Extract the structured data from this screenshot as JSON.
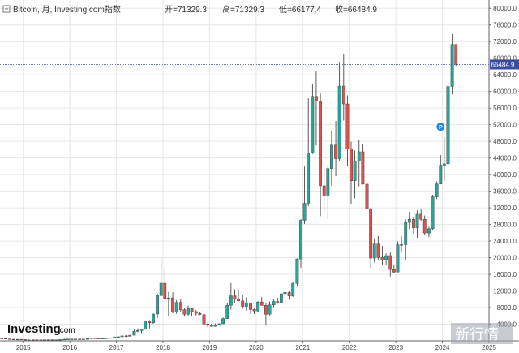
{
  "header": {
    "symbol": "Bitcoin, 月, Investing.com指数",
    "open_label": "开=71329.3",
    "high_label": "高=71329.3",
    "low_label": "低=66177.4",
    "close_label": "收=66484.9"
  },
  "current_price_label": "66484.9",
  "brand": {
    "name": "Investing",
    "suffix": ".com"
  },
  "watermark": "新行情",
  "colors": {
    "up": "#26a69a",
    "down": "#d9534f",
    "up_alt": "#2e9e6a",
    "price_line": "#3b4ba0",
    "grid": "#e6e6e6",
    "axis": "#666666",
    "marker": "#1e88e5"
  },
  "marker_icon": "p-event-icon",
  "marker_label": "P",
  "chart_data": {
    "type": "candlestick",
    "interval": "monthly",
    "ylim": [
      0,
      82000
    ],
    "yticks": [
      4000,
      8000,
      12000,
      16000,
      20000,
      24000,
      28000,
      32000,
      36000,
      40000,
      44000,
      48000,
      52000,
      56000,
      60000,
      64000,
      68000,
      72000,
      76000,
      80000
    ],
    "ytick_labels": [
      "4000.0",
      "8000.0",
      "12000.0",
      "16000.0",
      "20000.0",
      "24000.0",
      "28000.0",
      "32000.0",
      "36000.0",
      "40000.0",
      "44000.0",
      "48000.0",
      "52000.0",
      "56000.0",
      "60000.0",
      "64000.0",
      "68000.0",
      "72000.0",
      "76000.0",
      "80000.0"
    ],
    "xticks": [
      "2015",
      "2016",
      "2017",
      "2018",
      "2019",
      "2020",
      "2021",
      "2022",
      "2023",
      "2024",
      "2025"
    ],
    "x_start": 2014.5,
    "x_end": 2025.0,
    "current_price": 66484.9,
    "marker": {
      "t": 2023.96,
      "y": 51500
    },
    "candles": [
      {
        "t": 2014.54,
        "o": 620,
        "h": 650,
        "l": 580,
        "c": 590
      },
      {
        "t": 2014.62,
        "o": 590,
        "h": 600,
        "l": 460,
        "c": 480
      },
      {
        "t": 2014.71,
        "o": 480,
        "h": 490,
        "l": 370,
        "c": 390
      },
      {
        "t": 2014.79,
        "o": 390,
        "h": 420,
        "l": 320,
        "c": 340
      },
      {
        "t": 2014.88,
        "o": 340,
        "h": 440,
        "l": 330,
        "c": 375
      },
      {
        "t": 2014.96,
        "o": 375,
        "h": 380,
        "l": 310,
        "c": 320
      },
      {
        "t": 2015.04,
        "o": 320,
        "h": 320,
        "l": 170,
        "c": 215
      },
      {
        "t": 2015.12,
        "o": 215,
        "h": 265,
        "l": 200,
        "c": 254
      },
      {
        "t": 2015.21,
        "o": 254,
        "h": 300,
        "l": 240,
        "c": 244
      },
      {
        "t": 2015.29,
        "o": 244,
        "h": 260,
        "l": 215,
        "c": 236
      },
      {
        "t": 2015.38,
        "o": 236,
        "h": 245,
        "l": 225,
        "c": 230
      },
      {
        "t": 2015.46,
        "o": 230,
        "h": 265,
        "l": 220,
        "c": 263
      },
      {
        "t": 2015.54,
        "o": 263,
        "h": 320,
        "l": 255,
        "c": 284
      },
      {
        "t": 2015.62,
        "o": 284,
        "h": 285,
        "l": 200,
        "c": 230
      },
      {
        "t": 2015.71,
        "o": 230,
        "h": 245,
        "l": 225,
        "c": 236
      },
      {
        "t": 2015.79,
        "o": 236,
        "h": 335,
        "l": 235,
        "c": 315
      },
      {
        "t": 2015.88,
        "o": 315,
        "h": 500,
        "l": 310,
        "c": 377
      },
      {
        "t": 2015.96,
        "o": 377,
        "h": 470,
        "l": 350,
        "c": 430
      },
      {
        "t": 2016.04,
        "o": 430,
        "h": 460,
        "l": 350,
        "c": 369
      },
      {
        "t": 2016.12,
        "o": 369,
        "h": 445,
        "l": 365,
        "c": 437
      },
      {
        "t": 2016.21,
        "o": 437,
        "h": 440,
        "l": 400,
        "c": 416
      },
      {
        "t": 2016.29,
        "o": 416,
        "h": 465,
        "l": 410,
        "c": 448
      },
      {
        "t": 2016.38,
        "o": 448,
        "h": 550,
        "l": 440,
        "c": 531
      },
      {
        "t": 2016.46,
        "o": 531,
        "h": 780,
        "l": 530,
        "c": 673
      },
      {
        "t": 2016.54,
        "o": 673,
        "h": 700,
        "l": 600,
        "c": 624
      },
      {
        "t": 2016.62,
        "o": 624,
        "h": 625,
        "l": 480,
        "c": 575
      },
      {
        "t": 2016.71,
        "o": 575,
        "h": 615,
        "l": 570,
        "c": 609
      },
      {
        "t": 2016.79,
        "o": 609,
        "h": 740,
        "l": 605,
        "c": 700
      },
      {
        "t": 2016.88,
        "o": 700,
        "h": 760,
        "l": 690,
        "c": 745
      },
      {
        "t": 2016.96,
        "o": 745,
        "h": 980,
        "l": 740,
        "c": 964
      },
      {
        "t": 2017.04,
        "o": 964,
        "h": 1150,
        "l": 750,
        "c": 970
      },
      {
        "t": 2017.12,
        "o": 970,
        "h": 1200,
        "l": 920,
        "c": 1190
      },
      {
        "t": 2017.21,
        "o": 1190,
        "h": 1350,
        "l": 890,
        "c": 1080
      },
      {
        "t": 2017.29,
        "o": 1080,
        "h": 1450,
        "l": 1080,
        "c": 1350
      },
      {
        "t": 2017.38,
        "o": 1350,
        "h": 2700,
        "l": 1350,
        "c": 2300
      },
      {
        "t": 2017.46,
        "o": 2300,
        "h": 3000,
        "l": 2100,
        "c": 2480
      },
      {
        "t": 2017.54,
        "o": 2480,
        "h": 2900,
        "l": 1850,
        "c": 2870
      },
      {
        "t": 2017.62,
        "o": 2870,
        "h": 4700,
        "l": 2700,
        "c": 4730
      },
      {
        "t": 2017.71,
        "o": 4730,
        "h": 4980,
        "l": 2970,
        "c": 4340
      },
      {
        "t": 2017.79,
        "o": 4340,
        "h": 6470,
        "l": 4100,
        "c": 6450
      },
      {
        "t": 2017.88,
        "o": 6450,
        "h": 11400,
        "l": 5500,
        "c": 10860
      },
      {
        "t": 2017.96,
        "o": 10860,
        "h": 19800,
        "l": 10800,
        "c": 13860
      },
      {
        "t": 2018.04,
        "o": 13860,
        "h": 17200,
        "l": 9000,
        "c": 10220
      },
      {
        "t": 2018.12,
        "o": 10220,
        "h": 11800,
        "l": 6000,
        "c": 10310
      },
      {
        "t": 2018.21,
        "o": 10310,
        "h": 11700,
        "l": 6600,
        "c": 6930
      },
      {
        "t": 2018.29,
        "o": 6930,
        "h": 9800,
        "l": 6500,
        "c": 9240
      },
      {
        "t": 2018.38,
        "o": 9240,
        "h": 9950,
        "l": 7050,
        "c": 7500
      },
      {
        "t": 2018.46,
        "o": 7500,
        "h": 7800,
        "l": 5800,
        "c": 6390
      },
      {
        "t": 2018.54,
        "o": 6390,
        "h": 8500,
        "l": 6100,
        "c": 7730
      },
      {
        "t": 2018.62,
        "o": 7730,
        "h": 7800,
        "l": 5900,
        "c": 7030
      },
      {
        "t": 2018.71,
        "o": 7030,
        "h": 7400,
        "l": 6100,
        "c": 6630
      },
      {
        "t": 2018.79,
        "o": 6630,
        "h": 6950,
        "l": 6200,
        "c": 6320
      },
      {
        "t": 2018.88,
        "o": 6320,
        "h": 6550,
        "l": 3500,
        "c": 4020
      },
      {
        "t": 2018.96,
        "o": 4020,
        "h": 4350,
        "l": 3200,
        "c": 3740
      },
      {
        "t": 2019.04,
        "o": 3740,
        "h": 4100,
        "l": 3400,
        "c": 3460
      },
      {
        "t": 2019.12,
        "o": 3460,
        "h": 4200,
        "l": 3400,
        "c": 3850
      },
      {
        "t": 2019.21,
        "o": 3850,
        "h": 4150,
        "l": 3700,
        "c": 4100
      },
      {
        "t": 2019.29,
        "o": 4100,
        "h": 5600,
        "l": 4050,
        "c": 5320
      },
      {
        "t": 2019.38,
        "o": 5320,
        "h": 9000,
        "l": 5300,
        "c": 8560
      },
      {
        "t": 2019.46,
        "o": 8560,
        "h": 13900,
        "l": 7500,
        "c": 10820
      },
      {
        "t": 2019.54,
        "o": 10820,
        "h": 12400,
        "l": 9100,
        "c": 10090
      },
      {
        "t": 2019.62,
        "o": 10090,
        "h": 12300,
        "l": 9500,
        "c": 9590
      },
      {
        "t": 2019.71,
        "o": 9590,
        "h": 10950,
        "l": 7700,
        "c": 8290
      },
      {
        "t": 2019.79,
        "o": 8290,
        "h": 10500,
        "l": 7300,
        "c": 9140
      },
      {
        "t": 2019.88,
        "o": 9140,
        "h": 9200,
        "l": 6500,
        "c": 7550
      },
      {
        "t": 2019.96,
        "o": 7550,
        "h": 7750,
        "l": 6450,
        "c": 7190
      },
      {
        "t": 2020.04,
        "o": 7190,
        "h": 9550,
        "l": 6850,
        "c": 9350
      },
      {
        "t": 2020.12,
        "o": 9350,
        "h": 10500,
        "l": 8450,
        "c": 8520
      },
      {
        "t": 2020.21,
        "o": 8520,
        "h": 9200,
        "l": 3850,
        "c": 6410
      },
      {
        "t": 2020.29,
        "o": 6410,
        "h": 9450,
        "l": 6150,
        "c": 8630
      },
      {
        "t": 2020.38,
        "o": 8630,
        "h": 10100,
        "l": 8100,
        "c": 9450
      },
      {
        "t": 2020.46,
        "o": 9450,
        "h": 10400,
        "l": 8900,
        "c": 9140
      },
      {
        "t": 2020.54,
        "o": 9140,
        "h": 11450,
        "l": 8970,
        "c": 11330
      },
      {
        "t": 2020.62,
        "o": 11330,
        "h": 12450,
        "l": 10550,
        "c": 11650
      },
      {
        "t": 2020.71,
        "o": 11650,
        "h": 12050,
        "l": 9850,
        "c": 10780
      },
      {
        "t": 2020.79,
        "o": 10780,
        "h": 14100,
        "l": 10550,
        "c": 13790
      },
      {
        "t": 2020.88,
        "o": 13790,
        "h": 19850,
        "l": 13200,
        "c": 19700
      },
      {
        "t": 2020.96,
        "o": 19700,
        "h": 29300,
        "l": 17600,
        "c": 28990
      },
      {
        "t": 2021.04,
        "o": 28990,
        "h": 41950,
        "l": 28150,
        "c": 33100
      },
      {
        "t": 2021.12,
        "o": 33100,
        "h": 58350,
        "l": 32400,
        "c": 45140
      },
      {
        "t": 2021.21,
        "o": 45140,
        "h": 61800,
        "l": 44950,
        "c": 58800
      },
      {
        "t": 2021.29,
        "o": 58800,
        "h": 64800,
        "l": 47000,
        "c": 57750
      },
      {
        "t": 2021.38,
        "o": 57750,
        "h": 59500,
        "l": 30000,
        "c": 37300
      },
      {
        "t": 2021.46,
        "o": 37300,
        "h": 41300,
        "l": 31100,
        "c": 35040
      },
      {
        "t": 2021.54,
        "o": 35040,
        "h": 42300,
        "l": 29300,
        "c": 41460
      },
      {
        "t": 2021.62,
        "o": 41460,
        "h": 50500,
        "l": 37300,
        "c": 47100
      },
      {
        "t": 2021.71,
        "o": 47100,
        "h": 52900,
        "l": 39600,
        "c": 43830
      },
      {
        "t": 2021.79,
        "o": 43830,
        "h": 66900,
        "l": 43300,
        "c": 61300
      },
      {
        "t": 2021.88,
        "o": 61300,
        "h": 69000,
        "l": 53000,
        "c": 57000
      },
      {
        "t": 2021.96,
        "o": 57000,
        "h": 59050,
        "l": 42000,
        "c": 46200
      },
      {
        "t": 2022.04,
        "o": 46200,
        "h": 47900,
        "l": 33000,
        "c": 38500
      },
      {
        "t": 2022.12,
        "o": 38500,
        "h": 45800,
        "l": 34300,
        "c": 43200
      },
      {
        "t": 2022.21,
        "o": 43200,
        "h": 48200,
        "l": 37200,
        "c": 45500
      },
      {
        "t": 2022.29,
        "o": 45500,
        "h": 47400,
        "l": 37600,
        "c": 37700
      },
      {
        "t": 2022.38,
        "o": 37700,
        "h": 40000,
        "l": 25400,
        "c": 31800
      },
      {
        "t": 2022.46,
        "o": 31800,
        "h": 32000,
        "l": 17600,
        "c": 19900
      },
      {
        "t": 2022.54,
        "o": 19900,
        "h": 24650,
        "l": 18800,
        "c": 23300
      },
      {
        "t": 2022.62,
        "o": 23300,
        "h": 25200,
        "l": 19550,
        "c": 20050
      },
      {
        "t": 2022.71,
        "o": 20050,
        "h": 22800,
        "l": 18150,
        "c": 19400
      },
      {
        "t": 2022.79,
        "o": 19400,
        "h": 21050,
        "l": 18200,
        "c": 20500
      },
      {
        "t": 2022.88,
        "o": 20500,
        "h": 21450,
        "l": 15500,
        "c": 17170
      },
      {
        "t": 2022.96,
        "o": 17170,
        "h": 18400,
        "l": 16300,
        "c": 16550
      },
      {
        "t": 2023.04,
        "o": 16550,
        "h": 23950,
        "l": 16500,
        "c": 23130
      },
      {
        "t": 2023.12,
        "o": 23130,
        "h": 25250,
        "l": 21350,
        "c": 23150
      },
      {
        "t": 2023.21,
        "o": 23150,
        "h": 29200,
        "l": 19550,
        "c": 28480
      },
      {
        "t": 2023.29,
        "o": 28480,
        "h": 31050,
        "l": 26950,
        "c": 29250
      },
      {
        "t": 2023.38,
        "o": 29250,
        "h": 29850,
        "l": 25800,
        "c": 27210
      },
      {
        "t": 2023.46,
        "o": 27210,
        "h": 31400,
        "l": 24800,
        "c": 30480
      },
      {
        "t": 2023.54,
        "o": 30480,
        "h": 31800,
        "l": 28850,
        "c": 29250
      },
      {
        "t": 2023.62,
        "o": 29250,
        "h": 30150,
        "l": 25400,
        "c": 25950
      },
      {
        "t": 2023.71,
        "o": 25950,
        "h": 27450,
        "l": 24950,
        "c": 26970
      },
      {
        "t": 2023.79,
        "o": 26970,
        "h": 35150,
        "l": 26600,
        "c": 34650
      },
      {
        "t": 2023.88,
        "o": 34650,
        "h": 38400,
        "l": 34100,
        "c": 37720
      },
      {
        "t": 2023.96,
        "o": 37720,
        "h": 44700,
        "l": 37650,
        "c": 42270
      },
      {
        "t": 2024.04,
        "o": 42270,
        "h": 48950,
        "l": 38550,
        "c": 42580
      },
      {
        "t": 2024.12,
        "o": 42580,
        "h": 63900,
        "l": 41900,
        "c": 61200
      },
      {
        "t": 2024.21,
        "o": 61200,
        "h": 73800,
        "l": 59300,
        "c": 71329.3
      },
      {
        "t": 2024.29,
        "o": 71329.3,
        "h": 71329.3,
        "l": 66177.4,
        "c": 66484.9
      }
    ]
  }
}
